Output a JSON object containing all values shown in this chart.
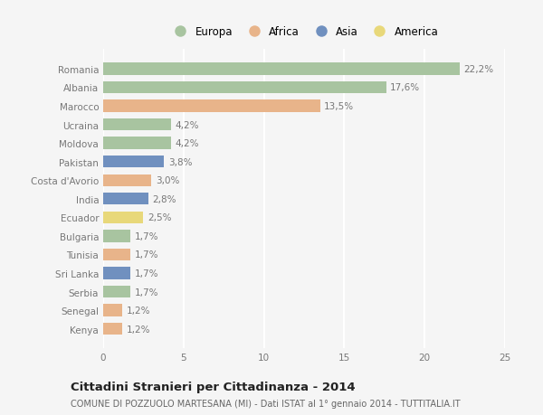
{
  "categories": [
    "Romania",
    "Albania",
    "Marocco",
    "Ucraina",
    "Moldova",
    "Pakistan",
    "Costa d'Avorio",
    "India",
    "Ecuador",
    "Bulgaria",
    "Tunisia",
    "Sri Lanka",
    "Serbia",
    "Senegal",
    "Kenya"
  ],
  "values": [
    22.2,
    17.6,
    13.5,
    4.2,
    4.2,
    3.8,
    3.0,
    2.8,
    2.5,
    1.7,
    1.7,
    1.7,
    1.7,
    1.2,
    1.2
  ],
  "labels": [
    "22,2%",
    "17,6%",
    "13,5%",
    "4,2%",
    "4,2%",
    "3,8%",
    "3,0%",
    "2,8%",
    "2,5%",
    "1,7%",
    "1,7%",
    "1,7%",
    "1,7%",
    "1,2%",
    "1,2%"
  ],
  "continents": [
    "Europa",
    "Europa",
    "Africa",
    "Europa",
    "Europa",
    "Asia",
    "Africa",
    "Asia",
    "America",
    "Europa",
    "Africa",
    "Asia",
    "Europa",
    "Africa",
    "Africa"
  ],
  "colors": {
    "Europa": "#a8c4a0",
    "Africa": "#e8b48a",
    "Asia": "#7090bf",
    "America": "#e8d87a"
  },
  "legend_order": [
    "Europa",
    "Africa",
    "Asia",
    "America"
  ],
  "xlim": [
    0,
    25
  ],
  "xticks": [
    0,
    5,
    10,
    15,
    20,
    25
  ],
  "title": "Cittadini Stranieri per Cittadinanza - 2014",
  "subtitle": "COMUNE DI POZZUOLO MARTESANA (MI) - Dati ISTAT al 1° gennaio 2014 - TUTTITALIA.IT",
  "background_color": "#f5f5f5",
  "bar_height": 0.65,
  "grid_color": "#ffffff",
  "label_color": "#777777",
  "label_fontsize": 7.5,
  "tick_fontsize": 7.5,
  "title_fontsize": 9.5,
  "subtitle_fontsize": 7.0
}
